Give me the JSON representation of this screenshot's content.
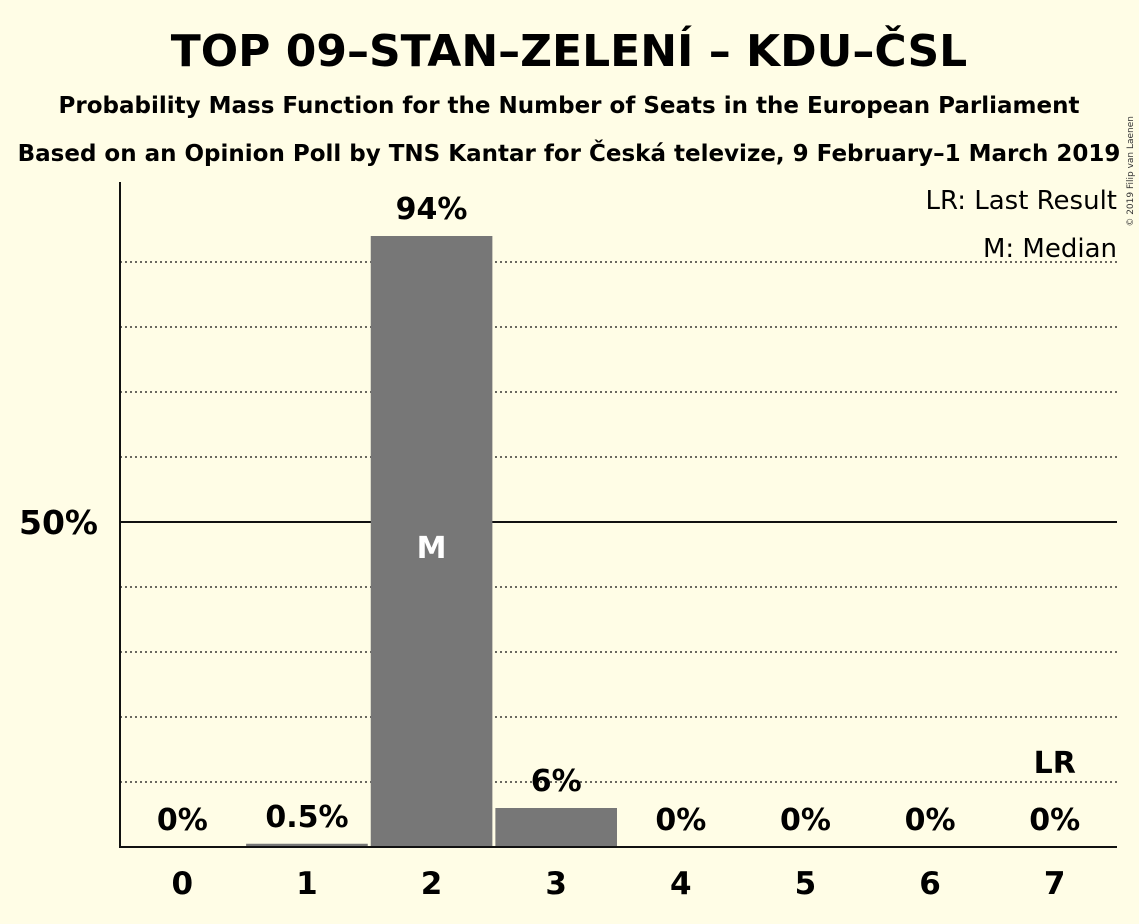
{
  "header": {
    "title": "TOP 09–STAN–ZELENÍ – KDU–ČSL",
    "subtitle1": "Probability Mass Function for the Number of Seats in the European Parliament",
    "subtitle2": "Based on an Opinion Poll by TNS Kantar for Česká televize, 9 February–1 March 2019",
    "copyright": "© 2019 Filip van Laenen"
  },
  "legend": {
    "last_result": "LR: Last Result",
    "median": "M: Median"
  },
  "colors": {
    "background": "#fffde6",
    "bar": "#777777",
    "axis": "#111111",
    "median_text": "#ffffff"
  },
  "chart_data": {
    "type": "bar",
    "categories": [
      "0",
      "1",
      "2",
      "3",
      "4",
      "5",
      "6",
      "7"
    ],
    "values": [
      0,
      0.5,
      94,
      6,
      0,
      0,
      0,
      0
    ],
    "labels": [
      "0%",
      "0.5%",
      "94%",
      "6%",
      "0%",
      "0%",
      "0%",
      "0%"
    ],
    "ylim": [
      0,
      100
    ],
    "yticks": [
      {
        "value": 50,
        "label": "50%"
      }
    ],
    "gridlines": [
      10,
      20,
      30,
      40,
      60,
      70,
      80,
      90
    ],
    "median_category": "2",
    "median_marker": "M",
    "last_result_category": "7",
    "last_result_marker": "LR",
    "legend_position": "top-right"
  }
}
